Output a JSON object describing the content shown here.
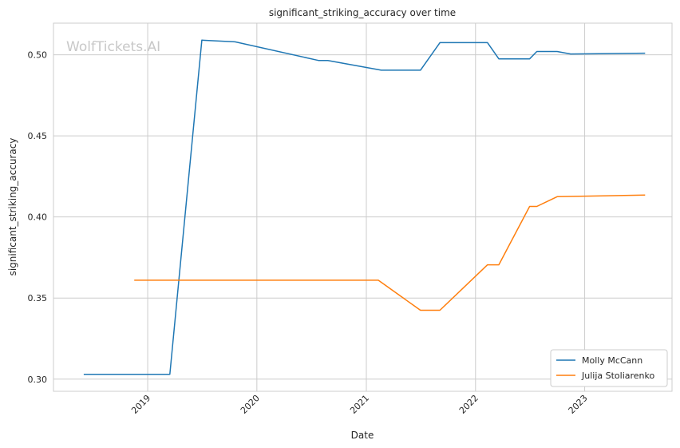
{
  "chart_data": {
    "type": "line",
    "title": "significant_striking_accuracy over time",
    "xlabel": "Date",
    "ylabel": "significant_striking_accuracy",
    "xlim": [
      "2018-02-20",
      "2023-10-20"
    ],
    "ylim": [
      0.2925,
      0.5195
    ],
    "x_ticks": [
      "2019",
      "2020",
      "2021",
      "2022",
      "2023"
    ],
    "x_tick_dates": [
      "2019-01-01",
      "2020-01-01",
      "2021-01-01",
      "2022-01-01",
      "2023-01-01"
    ],
    "y_ticks": [
      0.3,
      0.35,
      0.4,
      0.45,
      0.5
    ],
    "y_tick_labels": [
      "0.30",
      "0.35",
      "0.40",
      "0.45",
      "0.50"
    ],
    "grid": true,
    "legend_position": "bottom-right",
    "watermark": "WolfTickets.AI",
    "series": [
      {
        "name": "Molly McCann",
        "color": "#1f77b4",
        "points": [
          [
            "2018-06-01",
            0.303
          ],
          [
            "2019-03-16",
            0.303
          ],
          [
            "2019-07-01",
            0.509
          ],
          [
            "2019-10-20",
            0.508
          ],
          [
            "2020-07-25",
            0.4965
          ],
          [
            "2020-08-25",
            0.4965
          ],
          [
            "2021-02-20",
            0.4905
          ],
          [
            "2021-07-01",
            0.4905
          ],
          [
            "2021-09-04",
            0.5075
          ],
          [
            "2022-02-10",
            0.5075
          ],
          [
            "2022-03-20",
            0.4975
          ],
          [
            "2022-07-01",
            0.4975
          ],
          [
            "2022-07-25",
            0.502
          ],
          [
            "2022-10-01",
            0.502
          ],
          [
            "2022-11-15",
            0.5005
          ],
          [
            "2023-07-22",
            0.501
          ]
        ]
      },
      {
        "name": "Julija Stoliarenko",
        "color": "#ff7f0e",
        "points": [
          [
            "2018-11-17",
            0.361
          ],
          [
            "2021-02-10",
            0.361
          ],
          [
            "2021-07-01",
            0.3425
          ],
          [
            "2021-09-04",
            0.3425
          ],
          [
            "2022-02-10",
            0.3705
          ],
          [
            "2022-03-20",
            0.3705
          ],
          [
            "2022-07-01",
            0.4065
          ],
          [
            "2022-07-25",
            0.4065
          ],
          [
            "2022-10-01",
            0.4125
          ],
          [
            "2023-07-22",
            0.4135
          ]
        ]
      }
    ]
  }
}
